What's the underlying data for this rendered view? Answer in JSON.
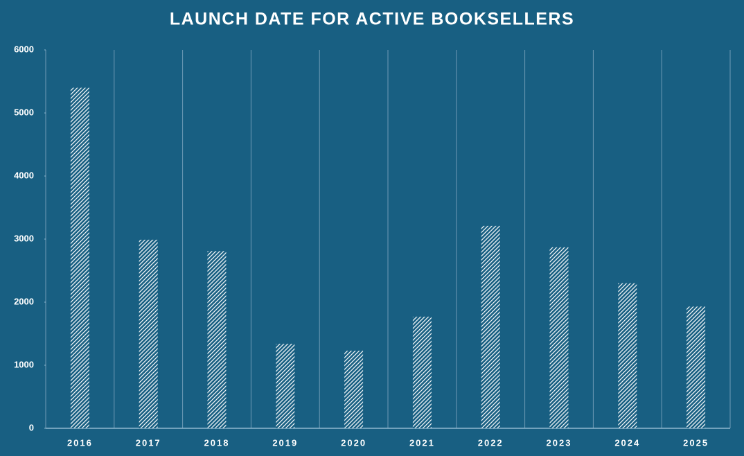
{
  "chart_data": {
    "type": "bar",
    "title": "LAUNCH DATE FOR ACTIVE BOOKSELLERS",
    "categories": [
      "2016",
      "2017",
      "2018",
      "2019",
      "2020",
      "2021",
      "2022",
      "2023",
      "2024",
      "2025"
    ],
    "values": [
      5400,
      2990,
      2810,
      1340,
      1230,
      1770,
      3210,
      2870,
      2300,
      1930
    ],
    "color": "#ffffff",
    "ylim": [
      0,
      6000
    ],
    "yticks": [
      0,
      1000,
      2000,
      3000,
      4000,
      5000,
      6000
    ]
  }
}
